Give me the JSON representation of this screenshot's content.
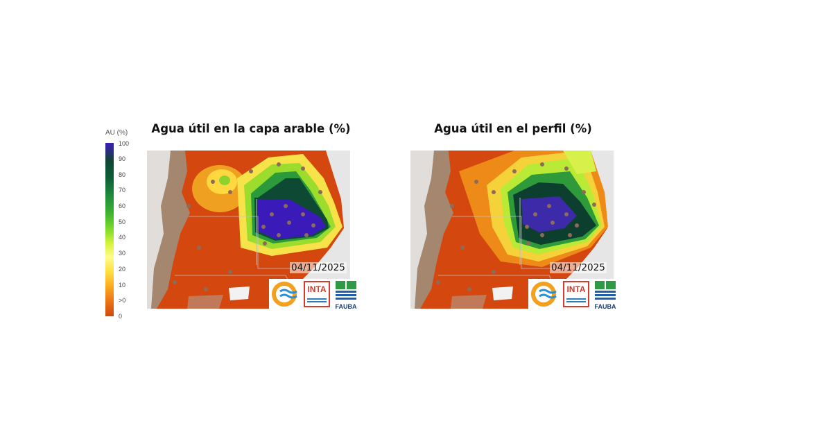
{
  "legend": {
    "title": "AU (%)",
    "ticks": [
      "100",
      "90",
      "80",
      "70",
      "60",
      "50",
      "40",
      "30",
      "20",
      "10",
      ">0",
      "0"
    ]
  },
  "panels": [
    {
      "title": "Agua útil en la capa arable (%)",
      "date": "04/11/2025"
    },
    {
      "title": "Agua útil en el perfil (%)",
      "date": "04/11/2025"
    }
  ],
  "logos": [
    "INTA",
    "FAUBA"
  ]
}
